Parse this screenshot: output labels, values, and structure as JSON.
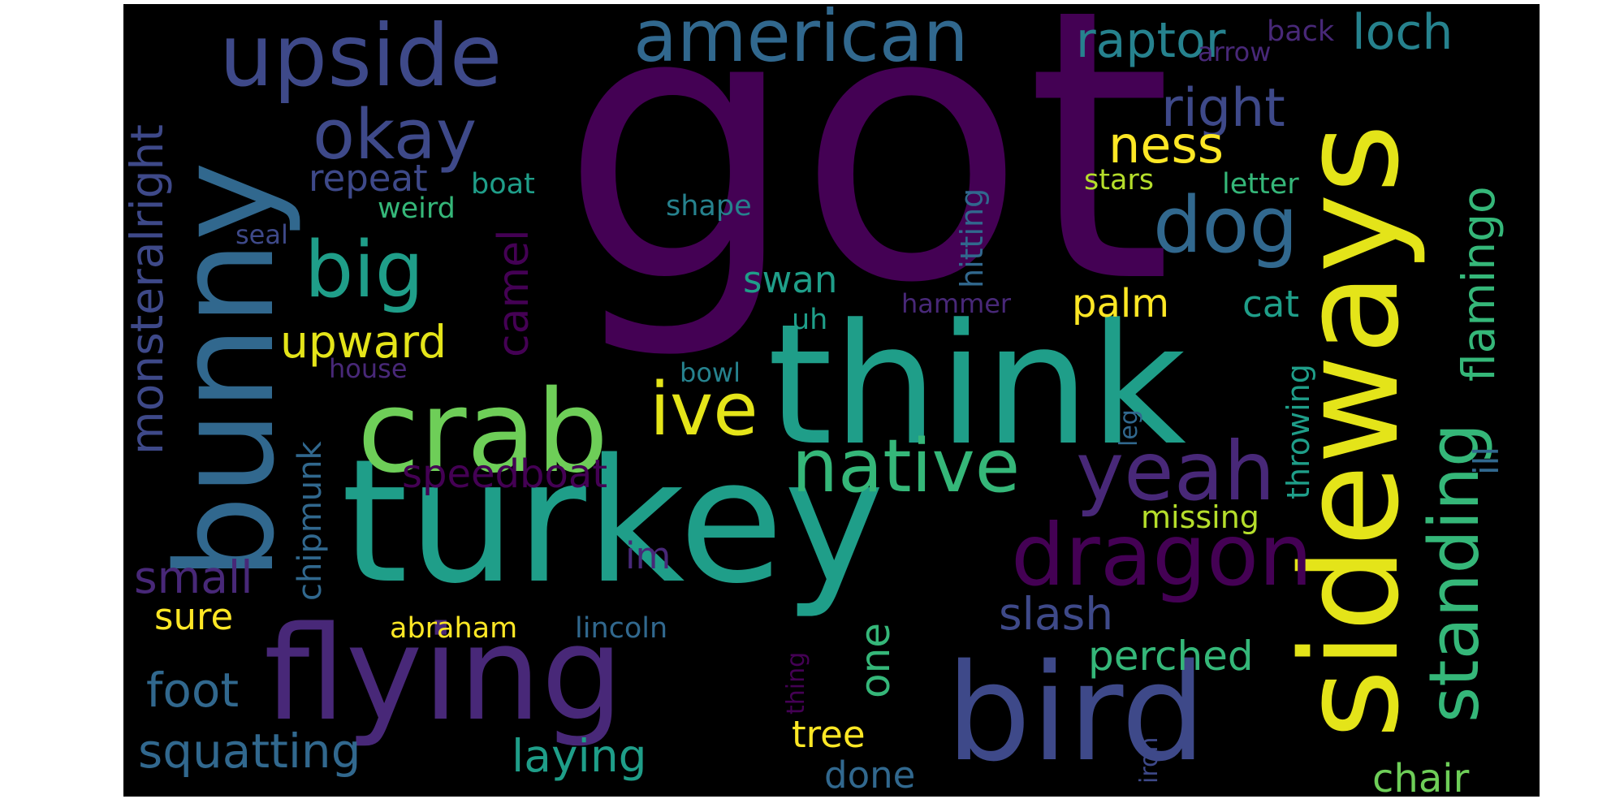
{
  "background": "#000000",
  "palette": {
    "deep_purple": "#440154",
    "purple": "#482878",
    "indigo": "#3e4989",
    "blue": "#31688e",
    "teal_blue": "#26828e",
    "teal": "#1f9e89",
    "green": "#35b779",
    "light_green": "#6ece58",
    "yellow_green": "#b5de2b",
    "yellow": "#fde725"
  },
  "words": [
    {
      "text": "got",
      "color": "#440154"
    },
    {
      "text": "turkey",
      "color": "#1f9e89"
    },
    {
      "text": "think",
      "color": "#1f9e89"
    },
    {
      "text": "bunny",
      "color": "#31688e"
    },
    {
      "text": "sideways",
      "color": "#e4e419"
    },
    {
      "text": "flying",
      "color": "#482878"
    },
    {
      "text": "bird",
      "color": "#3e4989"
    },
    {
      "text": "crab",
      "color": "#6ece58"
    },
    {
      "text": "upside",
      "color": "#3e4989"
    },
    {
      "text": "american",
      "color": "#31688e"
    },
    {
      "text": "dragon",
      "color": "#440154"
    },
    {
      "text": "native",
      "color": "#35b779"
    },
    {
      "text": "yeah",
      "color": "#482878"
    },
    {
      "text": "ive",
      "color": "#e4e419"
    },
    {
      "text": "big",
      "color": "#1f9e89"
    },
    {
      "text": "dog",
      "color": "#31688e"
    },
    {
      "text": "okay",
      "color": "#3e4989"
    },
    {
      "text": "standing",
      "color": "#35b779"
    },
    {
      "text": "raptor",
      "color": "#26828e"
    },
    {
      "text": "loch",
      "color": "#26828e"
    },
    {
      "text": "right",
      "color": "#3e4989"
    },
    {
      "text": "ness",
      "color": "#fde725"
    },
    {
      "text": "flamingo",
      "color": "#35b779"
    },
    {
      "text": "monsteralright",
      "color": "#3e4989"
    },
    {
      "text": "squatting",
      "color": "#31688e"
    },
    {
      "text": "laying",
      "color": "#1f9e89"
    },
    {
      "text": "small",
      "color": "#482878"
    },
    {
      "text": "foot",
      "color": "#31688e"
    },
    {
      "text": "slash",
      "color": "#3e4989"
    },
    {
      "text": "upward",
      "color": "#e4e419"
    },
    {
      "text": "camel",
      "color": "#440154"
    },
    {
      "text": "one",
      "color": "#35b779"
    },
    {
      "text": "perched",
      "color": "#35b779"
    },
    {
      "text": "chair",
      "color": "#6ece58"
    },
    {
      "text": "palm",
      "color": "#fde725"
    },
    {
      "text": "swan",
      "color": "#1f9e89"
    },
    {
      "text": "cat",
      "color": "#1f9e89"
    },
    {
      "text": "repeat",
      "color": "#3e4989"
    },
    {
      "text": "speedboat",
      "color": "#440154"
    },
    {
      "text": "tree",
      "color": "#fde725"
    },
    {
      "text": "done",
      "color": "#31688e"
    },
    {
      "text": "sure",
      "color": "#fde725"
    },
    {
      "text": "chipmunk",
      "color": "#31688e"
    },
    {
      "text": "hitting",
      "color": "#31688e"
    },
    {
      "text": "abraham",
      "color": "#fde725"
    },
    {
      "text": "lincoln",
      "color": "#31688e"
    },
    {
      "text": "ill",
      "color": "#31688e"
    },
    {
      "text": "missing",
      "color": "#b5de2b"
    },
    {
      "text": "im",
      "color": "#482878"
    },
    {
      "text": "throwing",
      "color": "#1f9e89"
    },
    {
      "text": "weird",
      "color": "#35b779"
    },
    {
      "text": "boat",
      "color": "#1f9e89"
    },
    {
      "text": "stars",
      "color": "#b5de2b"
    },
    {
      "text": "letter",
      "color": "#35b779"
    },
    {
      "text": "shape",
      "color": "#26828e"
    },
    {
      "text": "back",
      "color": "#482878"
    },
    {
      "text": "arrow",
      "color": "#482878"
    },
    {
      "text": "seal",
      "color": "#3e4989"
    },
    {
      "text": "hammer",
      "color": "#482878"
    },
    {
      "text": "uh",
      "color": "#1f9e89"
    },
    {
      "text": "house",
      "color": "#482878"
    },
    {
      "text": "bowl",
      "color": "#26828e"
    },
    {
      "text": "thing",
      "color": "#440154"
    },
    {
      "text": "iron",
      "color": "#3e4989"
    },
    {
      "text": "leg",
      "color": "#31688e"
    }
  ]
}
